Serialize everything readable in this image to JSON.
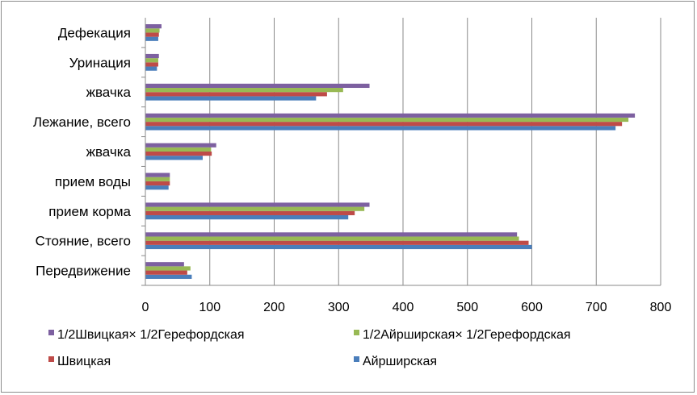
{
  "chart_data": {
    "type": "bar",
    "orientation": "horizontal",
    "categories": [
      "Передвижение",
      "Стояние,  всего",
      "прием корма",
      "прием воды",
      "жвачка",
      "Лежание,  всего",
      "жвачка",
      "Уринация",
      "Дефекация"
    ],
    "series": [
      {
        "name": "Айрширская",
        "color": "#4a7ebb",
        "values": [
          72,
          600,
          315,
          36,
          89,
          730,
          265,
          18,
          20
        ]
      },
      {
        "name": "Швицкая",
        "color": "#be4b48",
        "values": [
          65,
          595,
          325,
          38,
          103,
          740,
          282,
          20,
          21
        ]
      },
      {
        "name": "1/2Айрширская× 1/2Герефордская",
        "color": "#98b954",
        "values": [
          70,
          580,
          340,
          38,
          102,
          750,
          307,
          20,
          22
        ]
      },
      {
        "name": "1/2Швицкая× 1/2Герефордская",
        "color": "#7d60a0",
        "values": [
          60,
          577,
          348,
          38,
          110,
          760,
          348,
          21,
          25
        ]
      }
    ],
    "xlim": [
      0,
      800
    ],
    "xticks": [
      "0",
      "100",
      "200",
      "300",
      "400",
      "500",
      "600",
      "700",
      "800"
    ],
    "grid": true,
    "legend_position": "bottom",
    "legend_items": [
      {
        "label": "1/2Швицкая× 1/2Герефордская",
        "color": "#7d60a0"
      },
      {
        "label": "1/2Айрширская× 1/2Герефордская",
        "color": "#98b954"
      },
      {
        "label": "Швицкая",
        "color": "#be4b48"
      },
      {
        "label": "Айрширская",
        "color": "#4a7ebb"
      }
    ]
  }
}
